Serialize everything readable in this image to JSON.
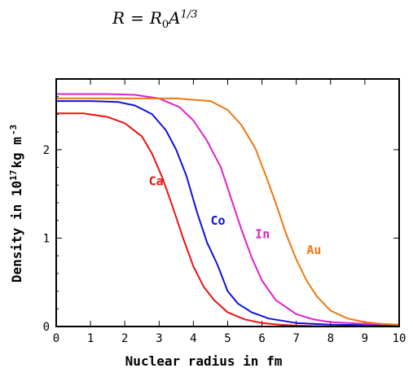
{
  "formula": {
    "lhs": "R",
    "rhs_base": "R",
    "rhs_sub": "0",
    "rhs_var": "A",
    "rhs_exp": "1/3"
  },
  "chart_data": {
    "type": "line",
    "title": "",
    "xlabel": "Nuclear radius in fm",
    "ylabel": {
      "main": "Density in 10",
      "exp": "17",
      "unit": "kg m",
      "unit_exp": "-3"
    },
    "xlim": [
      0,
      10
    ],
    "ylim": [
      0,
      2.8
    ],
    "xticks": [
      0,
      1,
      2,
      3,
      4,
      5,
      6,
      7,
      8,
      9,
      10
    ],
    "yticks": [
      0,
      1,
      2
    ],
    "grid": false,
    "series": [
      {
        "name": "Ca",
        "color": "#ee1111",
        "label_pos": [
          2.7,
          1.6
        ],
        "x": [
          0,
          0.8,
          1.5,
          2.0,
          2.5,
          2.8,
          3.1,
          3.4,
          3.7,
          4.0,
          4.3,
          4.6,
          5.0,
          5.5,
          6.0,
          6.5,
          7.0,
          8.0,
          10.0
        ],
        "y": [
          2.41,
          2.41,
          2.37,
          2.3,
          2.15,
          1.95,
          1.68,
          1.35,
          1.0,
          0.68,
          0.45,
          0.3,
          0.16,
          0.08,
          0.04,
          0.02,
          0.01,
          0.0,
          0.0
        ]
      },
      {
        "name": "Co",
        "color": "#1111dd",
        "label_pos": [
          4.5,
          1.15
        ],
        "x": [
          0,
          1.0,
          1.8,
          2.3,
          2.8,
          3.2,
          3.5,
          3.8,
          4.1,
          4.4,
          4.7,
          5.0,
          5.3,
          5.7,
          6.2,
          7.0,
          8.0,
          10.0
        ],
        "y": [
          2.55,
          2.55,
          2.54,
          2.5,
          2.4,
          2.22,
          2.0,
          1.7,
          1.3,
          0.95,
          0.7,
          0.4,
          0.26,
          0.16,
          0.09,
          0.04,
          0.02,
          0.01
        ]
      },
      {
        "name": "In",
        "color": "#dd22cc",
        "label_pos": [
          5.8,
          1.0
        ],
        "x": [
          0,
          1.5,
          2.3,
          3.0,
          3.6,
          4.0,
          4.4,
          4.8,
          5.1,
          5.4,
          5.7,
          6.0,
          6.4,
          7.0,
          7.5,
          8.0,
          9.0,
          10.0
        ],
        "y": [
          2.63,
          2.63,
          2.62,
          2.58,
          2.48,
          2.33,
          2.1,
          1.8,
          1.45,
          1.1,
          0.78,
          0.52,
          0.3,
          0.14,
          0.08,
          0.05,
          0.03,
          0.02
        ]
      },
      {
        "name": "Au",
        "color": "#ee7711",
        "label_pos": [
          7.3,
          0.82
        ],
        "x": [
          0,
          2.0,
          3.5,
          4.5,
          5.0,
          5.4,
          5.8,
          6.1,
          6.4,
          6.7,
          7.0,
          7.3,
          7.6,
          8.0,
          8.5,
          9.0,
          9.5,
          10.0
        ],
        "y": [
          2.58,
          2.58,
          2.58,
          2.55,
          2.45,
          2.28,
          2.02,
          1.72,
          1.4,
          1.05,
          0.76,
          0.52,
          0.34,
          0.18,
          0.09,
          0.05,
          0.03,
          0.02
        ]
      }
    ]
  }
}
